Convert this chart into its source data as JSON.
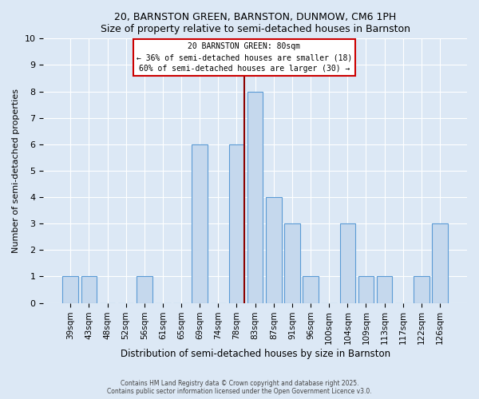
{
  "title": "20, BARNSTON GREEN, BARNSTON, DUNMOW, CM6 1PH",
  "subtitle": "Size of property relative to semi-detached houses in Barnston",
  "xlabel": "Distribution of semi-detached houses by size in Barnston",
  "ylabel": "Number of semi-detached properties",
  "categories": [
    "39sqm",
    "43sqm",
    "48sqm",
    "52sqm",
    "56sqm",
    "61sqm",
    "65sqm",
    "69sqm",
    "74sqm",
    "78sqm",
    "83sqm",
    "87sqm",
    "91sqm",
    "96sqm",
    "100sqm",
    "104sqm",
    "109sqm",
    "113sqm",
    "117sqm",
    "122sqm",
    "126sqm"
  ],
  "values": [
    1,
    1,
    0,
    0,
    1,
    0,
    0,
    6,
    0,
    6,
    8,
    4,
    3,
    1,
    0,
    3,
    1,
    1,
    0,
    1,
    3
  ],
  "bar_color": "#c5d8ed",
  "bar_edge_color": "#5b9bd5",
  "subject_label": "20 BARNSTON GREEN: 80sqm",
  "annotation_line1": "← 36% of semi-detached houses are smaller (18)",
  "annotation_line2": "60% of semi-detached houses are larger (30) →",
  "annotation_box_color": "#ffffff",
  "annotation_box_edge": "#cc0000",
  "subject_line_color": "#8b0000",
  "ylim": [
    0,
    10
  ],
  "yticks": [
    0,
    1,
    2,
    3,
    4,
    5,
    6,
    7,
    8,
    9,
    10
  ],
  "footer1": "Contains HM Land Registry data © Crown copyright and database right 2025.",
  "footer2": "Contains public sector information licensed under the Open Government Licence v3.0.",
  "background_color": "#dce8f5",
  "plot_background": "#dce8f5"
}
